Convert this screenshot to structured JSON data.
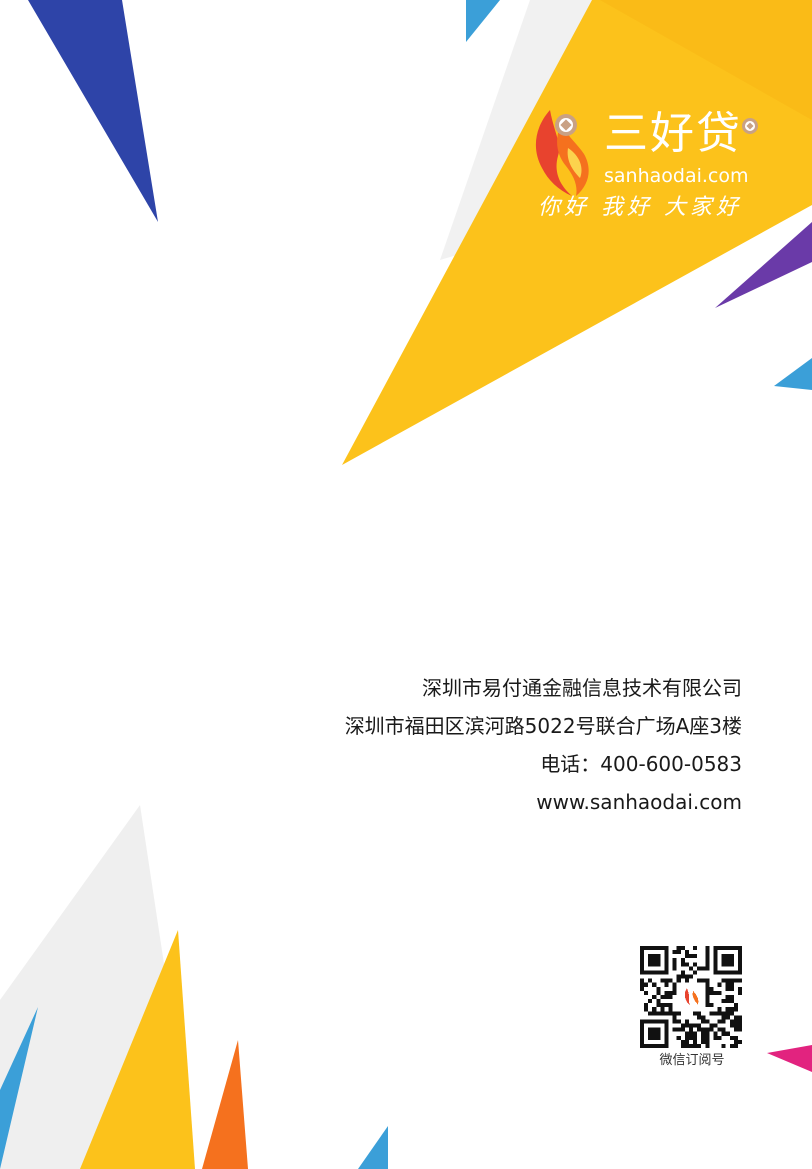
{
  "colors": {
    "yellow": "#fcc21b",
    "navy": "#2e44a8",
    "purple": "#6a3aa8",
    "sky": "#3b9fd8",
    "orange": "#f5711e",
    "magenta": "#e2237f",
    "light_gray": "#efefef"
  },
  "logo": {
    "icon": "flame-coin-icon",
    "brand_name": "三好贷",
    "domain": "sanhaodai.com",
    "slogan": "你好 我好 大家好"
  },
  "contact": {
    "company": "深圳市易付通金融信息技术有限公司",
    "address": "深圳市福田区滨河路5022号联合广场A座3楼",
    "phone": "电话：400-600-0583",
    "website": "www.sanhaodai.com"
  },
  "qr": {
    "icon": "qr-code-icon",
    "caption": "微信订阅号"
  }
}
